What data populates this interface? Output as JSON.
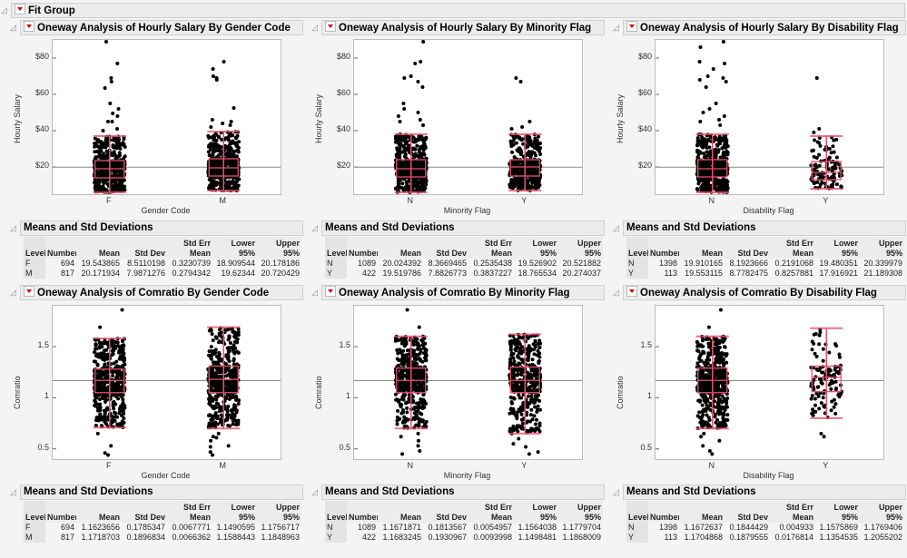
{
  "fit_group": {
    "title": "Fit Group"
  },
  "colors": {
    "box": "#e8506a",
    "points": "#000000",
    "mean_line": "#888888"
  },
  "table_title": "Means and Std Deviations",
  "table_headers": [
    "Level",
    "Number",
    "Mean",
    "Std Dev",
    "Std Err Mean",
    "Lower 95%",
    "Upper 95%"
  ],
  "panels": [
    {
      "title": "Oneway Analysis of Hourly Salary By Gender Code",
      "y_label": "Hourly Salary",
      "x_label": "Gender Code",
      "y_range": [
        5,
        90
      ],
      "y_ticks": [
        {
          "v": 20,
          "label": "$20"
        },
        {
          "v": 40,
          "label": "$40"
        },
        {
          "v": 60,
          "label": "$60"
        },
        {
          "v": 80,
          "label": "$80"
        }
      ],
      "grand_mean": 19.88,
      "groups": [
        {
          "level": "F",
          "n": 694,
          "box": [
            6,
            14,
            19,
            23.5,
            37
          ],
          "outliers": [
            89,
            77,
            69,
            67,
            63.5,
            55,
            52,
            49.5,
            48,
            45,
            45,
            41,
            40
          ]
        },
        {
          "level": "M",
          "n": 817,
          "box": [
            7,
            15,
            19.5,
            24.5,
            39.5
          ],
          "outliers": [
            78,
            74,
            70,
            69,
            68,
            52.5,
            46,
            45,
            44,
            43,
            42
          ]
        }
      ],
      "rows": [
        [
          "F",
          "694",
          "19.543865",
          "8.5110198",
          "0.3230739",
          "18.909544",
          "20.178186"
        ],
        [
          "M",
          "817",
          "20.171934",
          "7.9871276",
          "0.2794342",
          "19.62344",
          "20.720429"
        ]
      ]
    },
    {
      "title": "Oneway Analysis of Hourly Salary By Minority Flag",
      "y_label": "Hourly Salary",
      "x_label": "Minority Flag",
      "y_range": [
        5,
        90
      ],
      "y_ticks": [
        {
          "v": 20,
          "label": "$20"
        },
        {
          "v": 40,
          "label": "$40"
        },
        {
          "v": 60,
          "label": "$60"
        },
        {
          "v": 80,
          "label": "$80"
        }
      ],
      "grand_mean": 19.88,
      "groups": [
        {
          "level": "N",
          "n": 1089,
          "box": [
            6,
            14.5,
            19,
            24,
            38
          ],
          "outliers": [
            89,
            78,
            77,
            70,
            69,
            67,
            64,
            55,
            52,
            50,
            48,
            46,
            45,
            43
          ]
        },
        {
          "level": "Y",
          "n": 422,
          "box": [
            7,
            15,
            20,
            24,
            38
          ],
          "outliers": [
            69,
            67,
            45,
            42,
            41
          ]
        }
      ],
      "rows": [
        [
          "N",
          "1089",
          "20.024392",
          "8.3669465",
          "0.2535438",
          "19.526902",
          "20.521882"
        ],
        [
          "Y",
          "422",
          "19.519786",
          "7.8826773",
          "0.3837227",
          "18.765534",
          "20.274037"
        ]
      ]
    },
    {
      "title": "Oneway Analysis of Hourly Salary By Disability Flag",
      "y_label": "Hourly Salary",
      "x_label": "Disability Flag",
      "y_range": [
        5,
        90
      ],
      "y_ticks": [
        {
          "v": 20,
          "label": "$20"
        },
        {
          "v": 40,
          "label": "$40"
        },
        {
          "v": 60,
          "label": "$60"
        },
        {
          "v": 80,
          "label": "$80"
        }
      ],
      "grand_mean": 19.88,
      "groups": [
        {
          "level": "N",
          "n": 1398,
          "box": [
            6,
            14.5,
            19,
            24,
            38
          ],
          "outliers": [
            89,
            86,
            78,
            77,
            74,
            70,
            69,
            68,
            67,
            64,
            55,
            52,
            50,
            48,
            46,
            45,
            43
          ]
        },
        {
          "level": "Y",
          "n": 113,
          "box": [
            8,
            13,
            17,
            23,
            37
          ],
          "outliers": [
            69,
            41,
            39
          ]
        }
      ],
      "rows": [
        [
          "N",
          "1398",
          "19.910165",
          "8.1923666",
          "0.2191068",
          "19.480351",
          "20.339979"
        ],
        [
          "Y",
          "113",
          "19.553115",
          "8.7782475",
          "0.8257881",
          "17.916921",
          "21.189308"
        ]
      ]
    },
    {
      "title": "Oneway Analysis of Comratio By Gender Code",
      "y_label": "Comratio",
      "x_label": "Gender Code",
      "y_range": [
        0.4,
        1.9
      ],
      "y_ticks": [
        {
          "v": 0.5,
          "label": "0.5"
        },
        {
          "v": 1,
          "label": "1"
        },
        {
          "v": 1.5,
          "label": "1.5"
        }
      ],
      "grand_mean": 1.168,
      "groups": [
        {
          "level": "F",
          "n": 694,
          "box": [
            0.71,
            1.05,
            1.17,
            1.28,
            1.58
          ],
          "outliers": [
            1.86,
            1.69,
            0.65,
            0.53,
            0.46,
            0.44
          ]
        },
        {
          "level": "M",
          "n": 817,
          "box": [
            0.7,
            1.05,
            1.18,
            1.31,
            1.69
          ],
          "outliers": [
            0.65,
            0.62,
            0.61,
            0.58,
            0.53,
            0.52,
            0.47,
            0.44
          ]
        }
      ],
      "rows": [
        [
          "F",
          "694",
          "1.1623656",
          "0.1785347",
          "0.0067771",
          "1.1490595",
          "1.1756717"
        ],
        [
          "M",
          "817",
          "1.1718703",
          "0.1896834",
          "0.0066362",
          "1.1588443",
          "1.1848963"
        ]
      ]
    },
    {
      "title": "Oneway Analysis of Comratio By Minority Flag",
      "y_label": "Comratio",
      "x_label": "Minority Flag",
      "y_range": [
        0.4,
        1.9
      ],
      "y_ticks": [
        {
          "v": 0.5,
          "label": "0.5"
        },
        {
          "v": 1,
          "label": "1"
        },
        {
          "v": 1.5,
          "label": "1.5"
        }
      ],
      "grand_mean": 1.168,
      "groups": [
        {
          "level": "N",
          "n": 1089,
          "box": [
            0.7,
            1.05,
            1.17,
            1.29,
            1.6
          ],
          "outliers": [
            1.86,
            1.69,
            0.65,
            0.62,
            0.58,
            0.53,
            0.48,
            0.45
          ]
        },
        {
          "level": "Y",
          "n": 422,
          "box": [
            0.65,
            1.05,
            1.17,
            1.3,
            1.62
          ],
          "outliers": [
            0.6,
            0.55,
            0.52,
            0.47,
            0.45
          ]
        }
      ],
      "rows": [
        [
          "N",
          "1089",
          "1.1671871",
          "0.1813567",
          "0.0054957",
          "1.1564038",
          "1.1779704"
        ],
        [
          "Y",
          "422",
          "1.1683245",
          "0.1930967",
          "0.0093998",
          "1.1498481",
          "1.1868009"
        ]
      ]
    },
    {
      "title": "Oneway Analysis of Comratio By Disability Flag",
      "y_label": "Comratio",
      "x_label": "Disability Flag",
      "y_range": [
        0.4,
        1.9
      ],
      "y_ticks": [
        {
          "v": 0.5,
          "label": "0.5"
        },
        {
          "v": 1,
          "label": "1"
        },
        {
          "v": 1.5,
          "label": "1.5"
        }
      ],
      "grand_mean": 1.168,
      "groups": [
        {
          "level": "N",
          "n": 1398,
          "box": [
            0.7,
            1.05,
            1.17,
            1.29,
            1.6
          ],
          "outliers": [
            1.86,
            1.69,
            0.65,
            0.62,
            0.58,
            0.53,
            0.48,
            0.45
          ]
        },
        {
          "level": "Y",
          "n": 113,
          "box": [
            0.8,
            1.06,
            1.2,
            1.31,
            1.68
          ],
          "outliers": [
            0.65,
            0.62
          ]
        }
      ],
      "rows": [
        [
          "N",
          "1398",
          "1.1672637",
          "0.1844429",
          "0.004933",
          "1.1575869",
          "1.1769406"
        ],
        [
          "Y",
          "113",
          "1.1704868",
          "0.1879555",
          "0.0176814",
          "1.1354535",
          "1.2055202"
        ]
      ]
    }
  ]
}
